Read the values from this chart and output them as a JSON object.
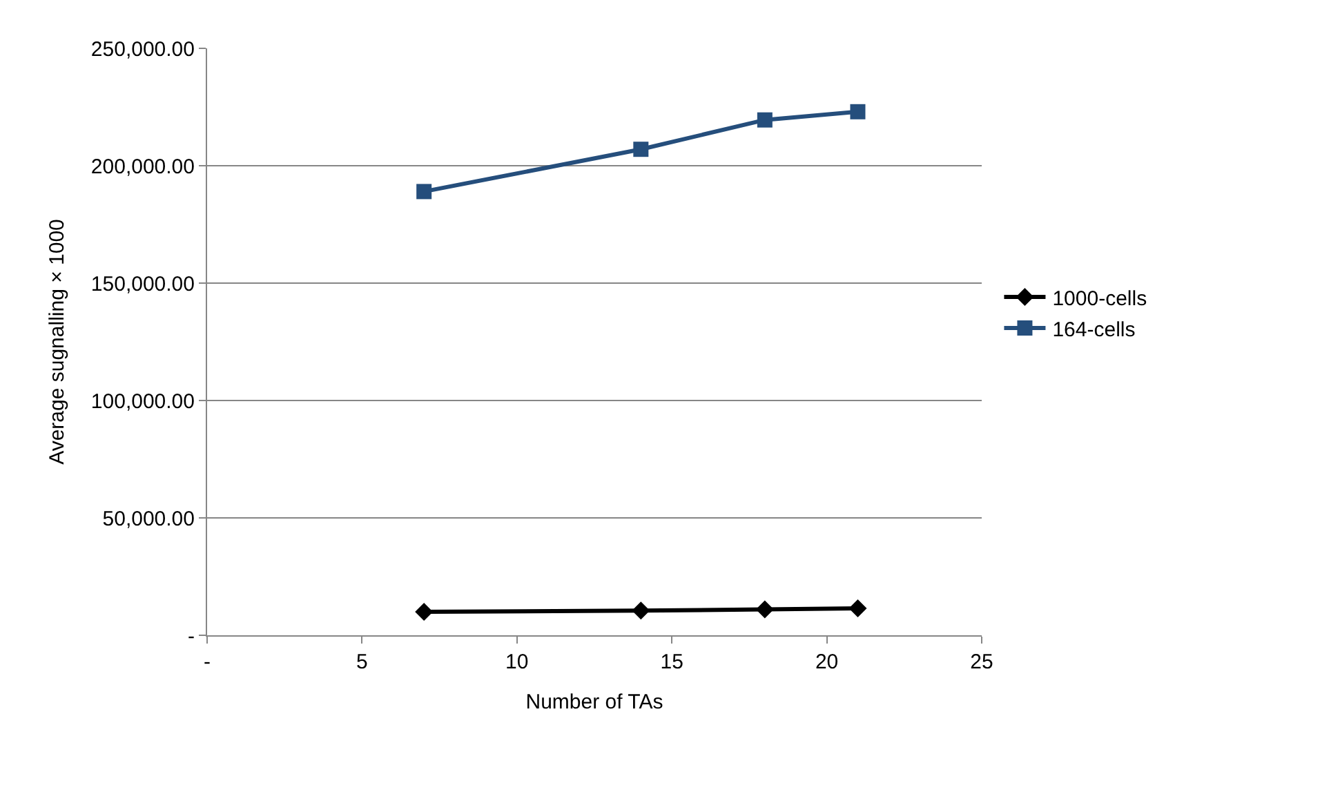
{
  "chart_data": {
    "type": "line",
    "xlabel": "Number of TAs",
    "ylabel": "Average sugnalling × 1000",
    "x": [
      7,
      14,
      18,
      21
    ],
    "series": [
      {
        "name": "1000-cells",
        "color": "#000000",
        "marker": "diamond",
        "values": [
          10000,
          10500,
          11000,
          11500
        ]
      },
      {
        "name": "164-cells",
        "color": "#254e7c",
        "marker": "square",
        "values": [
          189000,
          207000,
          219500,
          223000
        ]
      }
    ],
    "xlim": [
      0,
      25
    ],
    "xticks": [
      {
        "value": 0,
        "label": "-"
      },
      5,
      10,
      15,
      20,
      25
    ],
    "ylim": [
      0,
      250000
    ],
    "yticks": [
      {
        "value": 0,
        "label": "-"
      },
      {
        "value": 50000,
        "label": "50,000.00"
      },
      {
        "value": 100000,
        "label": "100,000.00"
      },
      {
        "value": 150000,
        "label": "150,000.00"
      },
      {
        "value": 200000,
        "label": "200,000.00"
      },
      {
        "value": 250000,
        "label": "250,000.00"
      }
    ],
    "grid": "y",
    "legend": "right",
    "line_style": "solid"
  }
}
